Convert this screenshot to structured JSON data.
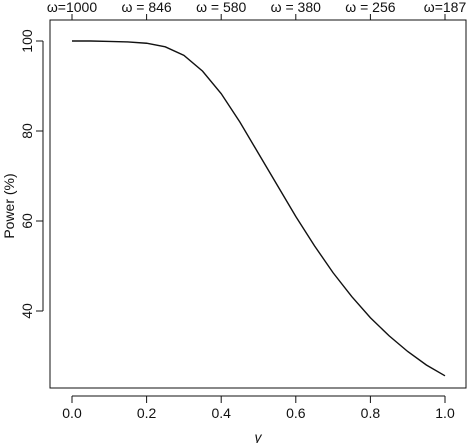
{
  "chart_data": {
    "type": "line",
    "title": "",
    "xlabel": "γ",
    "ylabel": "Power (%)",
    "xlim": [
      0.0,
      1.0
    ],
    "ylim": [
      25,
      103
    ],
    "x_ticks": [
      0.0,
      0.2,
      0.4,
      0.6,
      0.8,
      1.0
    ],
    "x_tick_labels": [
      "0.0",
      "0.2",
      "0.4",
      "0.6",
      "0.8",
      "1.0"
    ],
    "y_ticks": [
      40,
      60,
      80,
      100
    ],
    "y_tick_labels": [
      "40",
      "60",
      "80",
      "100"
    ],
    "top_axis": {
      "ticks": [
        0.0,
        0.2,
        0.4,
        0.6,
        0.8,
        1.0
      ],
      "labels": [
        "ω=1000",
        "ω = 846",
        "ω = 580",
        "ω = 380",
        "ω = 256",
        "ω=187"
      ]
    },
    "grid": false,
    "legend": "none",
    "series": [
      {
        "x": [
          0.0,
          0.05,
          0.1,
          0.15,
          0.2,
          0.25,
          0.3,
          0.35,
          0.4,
          0.45,
          0.5,
          0.55,
          0.6,
          0.65,
          0.7,
          0.75,
          0.8,
          0.85,
          0.9,
          0.95,
          1.0
        ],
        "y": [
          100,
          100,
          99.9,
          99.8,
          99.5,
          98.7,
          96.8,
          93.3,
          88.3,
          82.0,
          75.0,
          68.0,
          61.0,
          54.5,
          48.5,
          43.2,
          38.5,
          34.5,
          31.0,
          28.0,
          25.6
        ]
      }
    ]
  }
}
